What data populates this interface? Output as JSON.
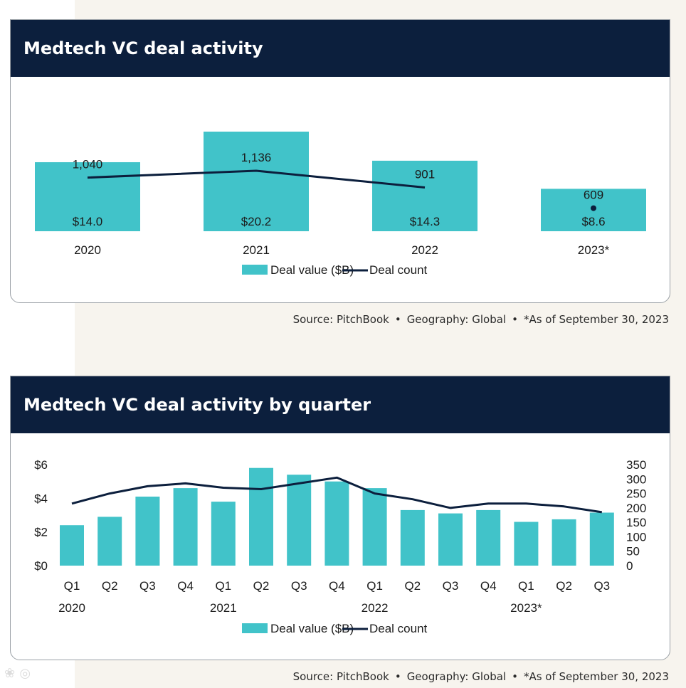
{
  "colors": {
    "bar": "#41c3c9",
    "line": "#0c1f3d",
    "header": "#0c1f3d"
  },
  "charts": [
    {
      "title": "Medtech VC deal activity",
      "legend": {
        "bar_label": "Deal value ($B)",
        "line_label": "Deal count"
      },
      "source": {
        "parts": [
          "Source: PitchBook",
          "Geography: Global",
          "*As of September 30, 2023"
        ]
      }
    },
    {
      "title": "Medtech VC deal activity by quarter",
      "legend": {
        "bar_label": "Deal value ($B)",
        "line_label": "Deal count"
      },
      "source": {
        "parts": [
          "Source: PitchBook",
          "Geography: Global",
          "*As of September 30, 2023"
        ]
      }
    }
  ],
  "chart_data": [
    {
      "type": "bar",
      "title": "Medtech VC deal activity",
      "categories": [
        "2020",
        "2021",
        "2022",
        "2023*"
      ],
      "series": [
        {
          "name": "Deal value ($B)",
          "type": "bar",
          "values": [
            14.0,
            20.2,
            14.3,
            8.6
          ],
          "labels": [
            "$14.0",
            "$20.2",
            "$14.3",
            "$8.6"
          ]
        },
        {
          "name": "Deal count",
          "type": "line",
          "values": [
            1040,
            1136,
            901,
            609
          ],
          "labels": [
            "1,040",
            "1,136",
            "901",
            "609"
          ],
          "note": "2023* shown as separate point"
        }
      ],
      "legend": "bottom-center",
      "grid": false
    },
    {
      "type": "bar",
      "title": "Medtech VC deal activity by quarter",
      "categories": [
        "Q1",
        "Q2",
        "Q3",
        "Q4",
        "Q1",
        "Q2",
        "Q3",
        "Q4",
        "Q1",
        "Q2",
        "Q3",
        "Q4",
        "Q1",
        "Q2",
        "Q3"
      ],
      "year_labels": [
        {
          "label": "2020",
          "quarter_index": 0
        },
        {
          "label": "2021",
          "quarter_index": 4
        },
        {
          "label": "2022",
          "quarter_index": 8
        },
        {
          "label": "2023*",
          "quarter_index": 12
        }
      ],
      "series": [
        {
          "name": "Deal value ($B)",
          "type": "bar",
          "axis": "left",
          "values": [
            2.4,
            2.9,
            4.1,
            4.6,
            3.8,
            5.8,
            5.4,
            5.0,
            4.6,
            3.3,
            3.1,
            3.3,
            2.6,
            2.75,
            3.15
          ]
        },
        {
          "name": "Deal count",
          "type": "line",
          "axis": "right",
          "values": [
            215,
            250,
            275,
            285,
            270,
            265,
            285,
            305,
            250,
            230,
            200,
            215,
            215,
            205,
            185
          ]
        }
      ],
      "y_left": {
        "ticks": [
          0,
          2,
          4,
          6
        ],
        "tick_labels": [
          "$0",
          "$2",
          "$4",
          "$6"
        ],
        "range": [
          0,
          6
        ]
      },
      "y_right": {
        "ticks": [
          0,
          50,
          100,
          150,
          200,
          250,
          300,
          350
        ],
        "tick_labels": [
          "0",
          "50",
          "100",
          "150",
          "200",
          "250",
          "300",
          "350"
        ],
        "range": [
          0,
          350
        ]
      },
      "legend": "bottom-center",
      "grid": false
    }
  ]
}
